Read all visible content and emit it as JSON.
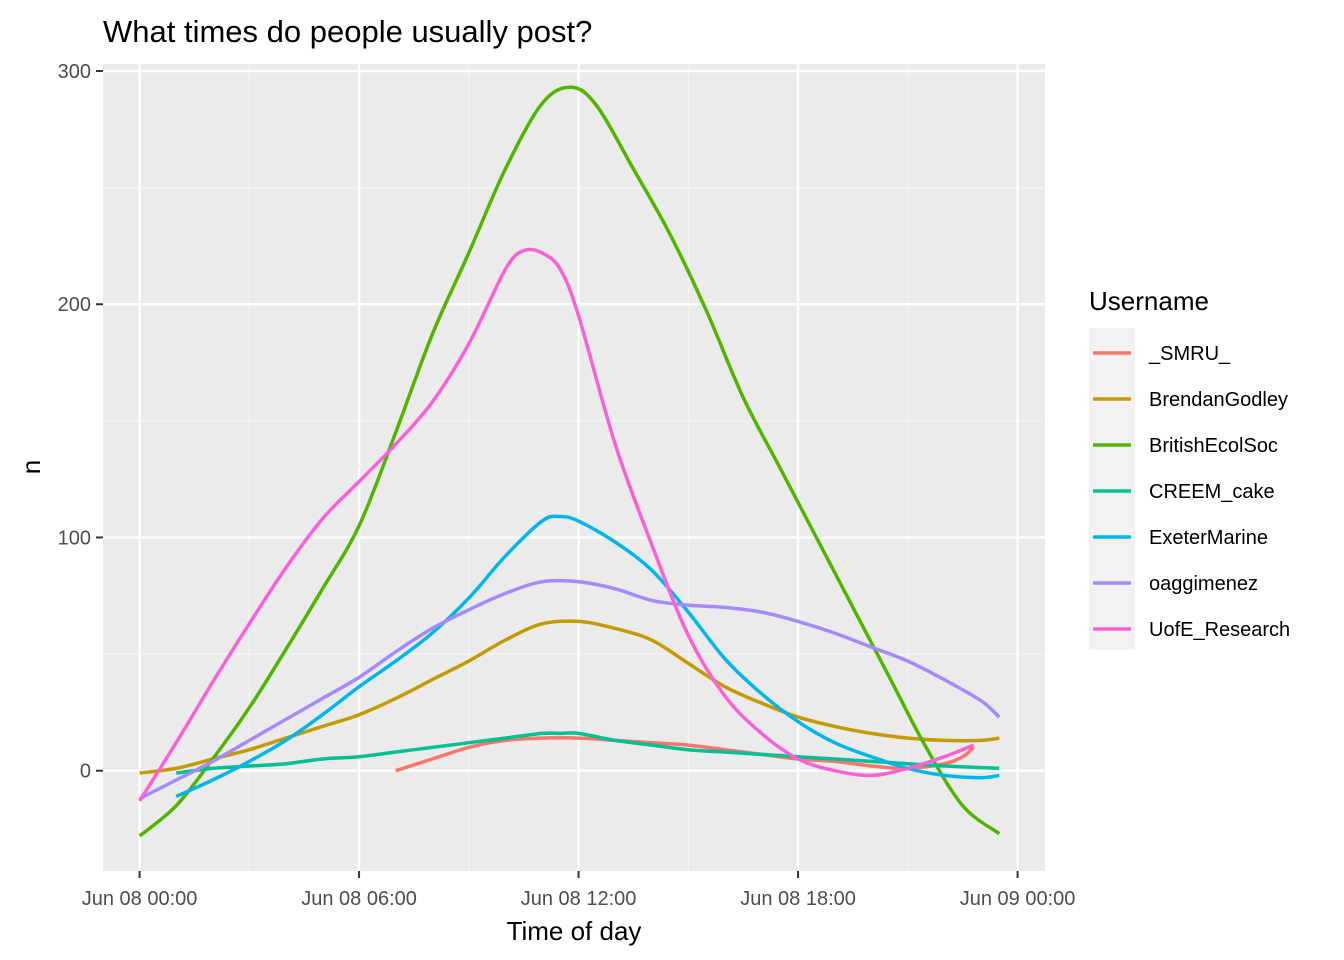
{
  "chart_data": {
    "type": "line",
    "title": "What times do people usually post?",
    "xlabel": "Time of day",
    "ylabel": "n",
    "x_unit": "hours",
    "xlim": [
      -1.0,
      24.75
    ],
    "ylim": [
      -43,
      303
    ],
    "x_ticks": [
      {
        "value": 0,
        "label": "Jun 08 00:00"
      },
      {
        "value": 6,
        "label": "Jun 08 06:00"
      },
      {
        "value": 12,
        "label": "Jun 08 12:00"
      },
      {
        "value": 18,
        "label": "Jun 08 18:00"
      },
      {
        "value": 24,
        "label": "Jun 09 00:00"
      }
    ],
    "y_ticks": [
      0,
      100,
      200,
      300
    ],
    "grid": true,
    "legend": {
      "title": "Username",
      "position": "right"
    },
    "series": [
      {
        "name": "_SMRU_",
        "color": "#F8766D",
        "points": [
          [
            7.0,
            0
          ],
          [
            8.0,
            5
          ],
          [
            9.0,
            10
          ],
          [
            10.0,
            13
          ],
          [
            11.0,
            14
          ],
          [
            12.0,
            14
          ],
          [
            13.0,
            13
          ],
          [
            14.0,
            12
          ],
          [
            15.0,
            11
          ],
          [
            16.0,
            9
          ],
          [
            17.0,
            7
          ],
          [
            18.0,
            5
          ],
          [
            19.0,
            4
          ],
          [
            20.0,
            2
          ],
          [
            21.0,
            1
          ],
          [
            22.0,
            3
          ],
          [
            22.5,
            6
          ],
          [
            22.8,
            10
          ]
        ]
      },
      {
        "name": "BrendanGodley",
        "color": "#C49A00",
        "points": [
          [
            0,
            -1
          ],
          [
            1,
            1
          ],
          [
            2,
            5
          ],
          [
            3,
            9
          ],
          [
            4,
            14
          ],
          [
            5,
            19
          ],
          [
            6,
            24
          ],
          [
            7,
            31
          ],
          [
            8,
            39
          ],
          [
            9,
            47
          ],
          [
            10,
            56
          ],
          [
            11,
            63
          ],
          [
            12,
            64
          ],
          [
            13,
            61
          ],
          [
            14,
            56
          ],
          [
            15,
            46
          ],
          [
            16,
            36
          ],
          [
            17,
            29
          ],
          [
            18,
            23
          ],
          [
            19,
            19
          ],
          [
            20,
            16
          ],
          [
            21,
            14
          ],
          [
            22,
            13
          ],
          [
            23,
            13
          ],
          [
            23.5,
            14
          ]
        ]
      },
      {
        "name": "BritishEcolSoc",
        "color": "#53B400",
        "points": [
          [
            0,
            -28
          ],
          [
            1,
            -15
          ],
          [
            2,
            5
          ],
          [
            3,
            27
          ],
          [
            4,
            52
          ],
          [
            5,
            78
          ],
          [
            6,
            105
          ],
          [
            7,
            145
          ],
          [
            8,
            187
          ],
          [
            9,
            222
          ],
          [
            10,
            258
          ],
          [
            11,
            286
          ],
          [
            11.8,
            293
          ],
          [
            12.5,
            285
          ],
          [
            13.5,
            258
          ],
          [
            14.5,
            230
          ],
          [
            15.5,
            197
          ],
          [
            16.5,
            160
          ],
          [
            17.5,
            130
          ],
          [
            18.5,
            100
          ],
          [
            19.5,
            70
          ],
          [
            20.5,
            40
          ],
          [
            21.5,
            10
          ],
          [
            22.5,
            -15
          ],
          [
            23.5,
            -27
          ]
        ]
      },
      {
        "name": "CREEM_cake",
        "color": "#00C094",
        "points": [
          [
            1,
            -1
          ],
          [
            2,
            1
          ],
          [
            3,
            2
          ],
          [
            4,
            3
          ],
          [
            5,
            5
          ],
          [
            6,
            6
          ],
          [
            7,
            8
          ],
          [
            8,
            10
          ],
          [
            9,
            12
          ],
          [
            10,
            14
          ],
          [
            11,
            16
          ],
          [
            11.5,
            16
          ],
          [
            12,
            16
          ],
          [
            13,
            13
          ],
          [
            14,
            11
          ],
          [
            15,
            9
          ],
          [
            16,
            8
          ],
          [
            17,
            7
          ],
          [
            18,
            6
          ],
          [
            19,
            5
          ],
          [
            20,
            4
          ],
          [
            21,
            3
          ],
          [
            22,
            2
          ],
          [
            23.5,
            1
          ]
        ]
      },
      {
        "name": "ExeterMarine",
        "color": "#00B6EB",
        "points": [
          [
            1,
            -11
          ],
          [
            2,
            -4
          ],
          [
            3,
            4
          ],
          [
            4,
            13
          ],
          [
            5,
            24
          ],
          [
            6,
            36
          ],
          [
            7,
            47
          ],
          [
            8,
            59
          ],
          [
            9,
            74
          ],
          [
            10,
            92
          ],
          [
            11,
            107
          ],
          [
            11.5,
            109
          ],
          [
            12,
            107
          ],
          [
            13,
            98
          ],
          [
            14,
            86
          ],
          [
            15,
            68
          ],
          [
            16,
            48
          ],
          [
            17,
            33
          ],
          [
            18,
            21
          ],
          [
            19,
            12
          ],
          [
            20,
            6
          ],
          [
            21,
            1
          ],
          [
            22,
            -2
          ],
          [
            23,
            -3
          ],
          [
            23.5,
            -2
          ]
        ]
      },
      {
        "name": "oaggimenez",
        "color": "#A58AFF",
        "points": [
          [
            0,
            -12
          ],
          [
            1,
            -4
          ],
          [
            2,
            4
          ],
          [
            3,
            13
          ],
          [
            4,
            22
          ],
          [
            5,
            31
          ],
          [
            6,
            40
          ],
          [
            7,
            51
          ],
          [
            8,
            61
          ],
          [
            9,
            69
          ],
          [
            10,
            76
          ],
          [
            11,
            81
          ],
          [
            12,
            81
          ],
          [
            13,
            78
          ],
          [
            14,
            73
          ],
          [
            15,
            71
          ],
          [
            16,
            70
          ],
          [
            17,
            68
          ],
          [
            18,
            64
          ],
          [
            19,
            59
          ],
          [
            20,
            53
          ],
          [
            21,
            47
          ],
          [
            22,
            39
          ],
          [
            23,
            30
          ],
          [
            23.5,
            23
          ]
        ]
      },
      {
        "name": "UofE_Research",
        "color": "#FB61D7",
        "points": [
          [
            0,
            -13
          ],
          [
            1,
            12
          ],
          [
            2,
            38
          ],
          [
            3,
            63
          ],
          [
            4,
            87
          ],
          [
            5,
            108
          ],
          [
            6,
            124
          ],
          [
            7,
            140
          ],
          [
            8,
            158
          ],
          [
            9,
            183
          ],
          [
            10,
            215
          ],
          [
            10.5,
            223
          ],
          [
            11.0,
            222
          ],
          [
            11.5,
            215
          ],
          [
            12,
            195
          ],
          [
            13,
            140
          ],
          [
            14,
            97
          ],
          [
            15,
            58
          ],
          [
            16,
            32
          ],
          [
            17,
            16
          ],
          [
            18,
            5
          ],
          [
            19,
            0
          ],
          [
            20,
            -2
          ],
          [
            21,
            1
          ],
          [
            22,
            6
          ],
          [
            22.8,
            11
          ]
        ]
      }
    ]
  }
}
